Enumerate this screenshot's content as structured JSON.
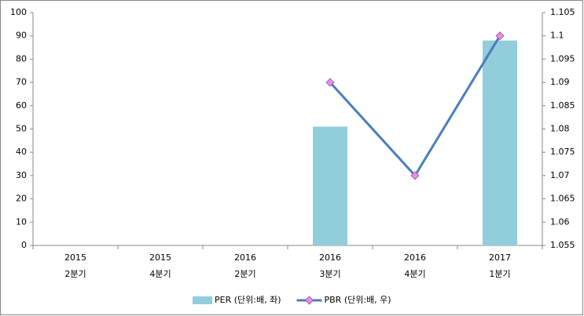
{
  "chart_data": {
    "type": "combo",
    "categories": [
      [
        "2015",
        "2분기"
      ],
      [
        "2015",
        "4분기"
      ],
      [
        "2016",
        "2분기"
      ],
      [
        "2016",
        "3분기"
      ],
      [
        "2016",
        "4분기"
      ],
      [
        "2017",
        "1분기"
      ]
    ],
    "series": [
      {
        "name": "PER (단위:배, 좌)",
        "type": "bar",
        "color": "#92cddc",
        "axis": "y",
        "values": [
          null,
          null,
          null,
          51,
          null,
          88
        ]
      },
      {
        "name": "PBR (단위:배, 우)",
        "type": "line",
        "color": "#4a7ebb",
        "marker_color": "#e68fe8",
        "axis": "y2",
        "values": [
          null,
          null,
          null,
          1.09,
          1.07,
          1.1
        ]
      }
    ],
    "ylim": [
      0,
      100
    ],
    "yticks": [
      0,
      10,
      20,
      30,
      40,
      50,
      60,
      70,
      80,
      90,
      100
    ],
    "y2lim": [
      1.055,
      1.105
    ],
    "y2ticks": [
      1.055,
      1.06,
      1.065,
      1.07,
      1.075,
      1.08,
      1.085,
      1.09,
      1.095,
      1.1,
      1.105
    ],
    "legend": "bottom"
  }
}
